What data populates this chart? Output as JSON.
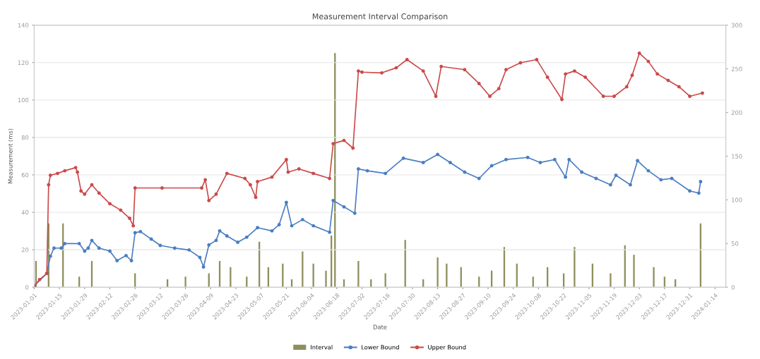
{
  "chart_data": {
    "type": "line",
    "title": "Measurement Interval Comparison",
    "xlabel": "Date",
    "ylabel": "Measurement (ms)",
    "xlim": [
      "2023-01-01",
      "2024-01-20"
    ],
    "xticks": [
      "2023-01-01",
      "2023-01-15",
      "2023-01-29",
      "2023-02-12",
      "2023-02-26",
      "2023-03-12",
      "2023-03-26",
      "2023-04-09",
      "2023-04-23",
      "2023-05-07",
      "2023-05-21",
      "2023-06-04",
      "2023-06-18",
      "2023-07-02",
      "2023-07-16",
      "2023-07-30",
      "2023-08-13",
      "2023-08-27",
      "2023-09-10",
      "2023-09-24",
      "2023-10-08",
      "2023-10-22",
      "2023-11-05",
      "2023-11-19",
      "2023-12-03",
      "2023-12-17",
      "2023-12-31",
      "2024-01-14"
    ],
    "ylim": [
      0,
      140
    ],
    "yticks": [
      0,
      20,
      40,
      60,
      80,
      100,
      120,
      140
    ],
    "y2lim": [
      0,
      300
    ],
    "y2ticks": [
      0,
      50,
      100,
      150,
      200,
      250,
      300
    ],
    "grid": "y",
    "legend": "bottom",
    "marker": "circle",
    "line_style": "solid",
    "series": [
      {
        "name": "Interval",
        "type": "bar",
        "axis": "y2",
        "color": "#8f8f5e",
        "x": [
          "2023-01-02",
          "2023-01-09",
          "2023-01-17",
          "2023-01-26",
          "2023-02-02",
          "2023-02-26",
          "2023-03-16",
          "2023-03-26",
          "2023-04-08",
          "2023-04-14",
          "2023-04-20",
          "2023-04-29",
          "2023-05-06",
          "2023-05-11",
          "2023-05-19",
          "2023-05-24",
          "2023-05-30",
          "2023-06-05",
          "2023-06-12",
          "2023-06-15",
          "2023-06-17",
          "2023-06-22",
          "2023-06-30",
          "2023-07-07",
          "2023-07-15",
          "2023-07-26",
          "2023-08-05",
          "2023-08-13",
          "2023-08-18",
          "2023-08-26",
          "2023-09-05",
          "2023-09-12",
          "2023-09-19",
          "2023-09-26",
          "2023-10-05",
          "2023-10-13",
          "2023-10-22",
          "2023-10-28",
          "2023-11-07",
          "2023-11-17",
          "2023-11-25",
          "2023-11-30",
          "2023-12-11",
          "2023-12-17",
          "2023-12-23",
          "2024-01-06"
        ],
        "values": [
          30,
          73,
          73,
          12,
          30,
          16,
          9,
          12,
          16,
          30,
          23,
          12,
          52,
          23,
          27,
          9,
          41,
          27,
          19,
          59,
          268,
          9,
          30,
          9,
          16,
          54,
          9,
          34,
          27,
          23,
          12,
          19,
          46,
          27,
          12,
          23,
          16,
          46,
          27,
          16,
          48,
          37,
          23,
          12,
          9,
          73
        ]
      },
      {
        "name": "Lower Bound",
        "color": "#4a7ec2",
        "x": [
          "2023-01-01",
          "2023-01-08",
          "2023-01-10",
          "2023-01-12",
          "2023-01-16",
          "2023-01-18",
          "2023-01-26",
          "2023-01-29",
          "2023-01-31",
          "2023-02-02",
          "2023-02-06",
          "2023-02-12",
          "2023-02-16",
          "2023-02-21",
          "2023-02-24",
          "2023-02-26",
          "2023-03-01",
          "2023-03-07",
          "2023-03-12",
          "2023-03-20",
          "2023-03-28",
          "2023-04-03",
          "2023-04-05",
          "2023-04-08",
          "2023-04-12",
          "2023-04-14",
          "2023-04-18",
          "2023-04-24",
          "2023-04-29",
          "2023-05-05",
          "2023-05-13",
          "2023-05-17",
          "2023-05-21",
          "2023-05-24",
          "2023-05-30",
          "2023-06-05",
          "2023-06-14",
          "2023-06-16",
          "2023-06-22",
          "2023-06-28",
          "2023-06-30",
          "2023-07-05",
          "2023-07-15",
          "2023-07-25",
          "2023-08-05",
          "2023-08-13",
          "2023-08-20",
          "2023-08-28",
          "2023-09-05",
          "2023-09-12",
          "2023-09-20",
          "2023-10-02",
          "2023-10-09",
          "2023-10-17",
          "2023-10-23",
          "2023-10-25",
          "2023-11-01",
          "2023-11-09",
          "2023-11-17",
          "2023-11-20",
          "2023-11-28",
          "2023-12-02",
          "2023-12-08",
          "2023-12-15",
          "2023-12-21",
          "2023-12-31",
          "2024-01-05",
          "2024-01-06"
        ],
        "values": [
          0.7,
          7.4,
          16.6,
          20.9,
          20.9,
          23.3,
          23.3,
          19.3,
          20.9,
          25.0,
          20.9,
          19.3,
          14.2,
          16.9,
          14.2,
          29.1,
          29.7,
          25.7,
          22.3,
          20.9,
          19.9,
          15.9,
          10.8,
          22.6,
          25.0,
          30.1,
          27.4,
          24.0,
          26.7,
          31.8,
          30.1,
          33.4,
          45.3,
          32.8,
          36.1,
          32.8,
          29.4,
          46.3,
          42.9,
          39.5,
          63.2,
          62.2,
          60.8,
          68.9,
          66.6,
          70.9,
          66.6,
          61.5,
          58.1,
          64.9,
          68.2,
          69.3,
          66.6,
          68.2,
          58.8,
          68.2,
          61.5,
          58.1,
          54.7,
          59.8,
          54.7,
          67.6,
          62.2,
          57.4,
          58.1,
          51.4,
          50.3,
          56.4
        ]
      },
      {
        "name": "Upper Bound",
        "color": "#cc4a4a",
        "x": [
          "2023-01-01",
          "2023-01-04",
          "2023-01-08",
          "2023-01-09",
          "2023-01-10",
          "2023-01-14",
          "2023-01-18",
          "2023-01-24",
          "2023-01-25",
          "2023-01-27",
          "2023-01-29",
          "2023-02-02",
          "2023-02-06",
          "2023-02-12",
          "2023-02-18",
          "2023-02-23",
          "2023-02-25",
          "2023-02-26",
          "2023-03-13",
          "2023-04-04",
          "2023-04-06",
          "2023-04-08",
          "2023-04-12",
          "2023-04-18",
          "2023-04-28",
          "2023-05-01",
          "2023-05-04",
          "2023-05-05",
          "2023-05-13",
          "2023-05-21",
          "2023-05-22",
          "2023-05-28",
          "2023-06-05",
          "2023-06-14",
          "2023-06-16",
          "2023-06-22",
          "2023-06-27",
          "2023-06-30",
          "2023-07-02",
          "2023-07-13",
          "2023-07-21",
          "2023-07-27",
          "2023-08-05",
          "2023-08-12",
          "2023-08-15",
          "2023-08-28",
          "2023-09-05",
          "2023-09-11",
          "2023-09-16",
          "2023-09-20",
          "2023-09-28",
          "2023-10-07",
          "2023-10-13",
          "2023-10-21",
          "2023-10-23",
          "2023-10-28",
          "2023-11-03",
          "2023-11-13",
          "2023-11-19",
          "2023-11-26",
          "2023-11-29",
          "2023-12-03",
          "2023-12-08",
          "2023-12-13",
          "2023-12-19",
          "2023-12-25",
          "2023-12-31",
          "2024-01-07"
        ],
        "values": [
          0.7,
          4.1,
          7.4,
          54.7,
          59.8,
          60.8,
          62.2,
          63.9,
          61.5,
          51.4,
          49.7,
          54.7,
          50.3,
          44.6,
          41.2,
          36.8,
          32.8,
          53.0,
          53.0,
          53.0,
          57.4,
          46.3,
          49.7,
          60.8,
          58.1,
          54.7,
          48.0,
          56.4,
          58.8,
          68.2,
          61.5,
          63.2,
          60.8,
          58.1,
          76.7,
          78.4,
          74.3,
          115.5,
          114.9,
          114.5,
          117.2,
          121.6,
          115.5,
          102.0,
          117.9,
          116.2,
          108.8,
          102.0,
          106.1,
          116.2,
          119.9,
          121.6,
          112.2,
          100.3,
          113.9,
          115.5,
          112.2,
          102.0,
          102.0,
          107.1,
          113.2,
          125.0,
          120.6,
          113.9,
          110.5,
          107.1,
          102.0,
          103.7
        ]
      }
    ]
  }
}
